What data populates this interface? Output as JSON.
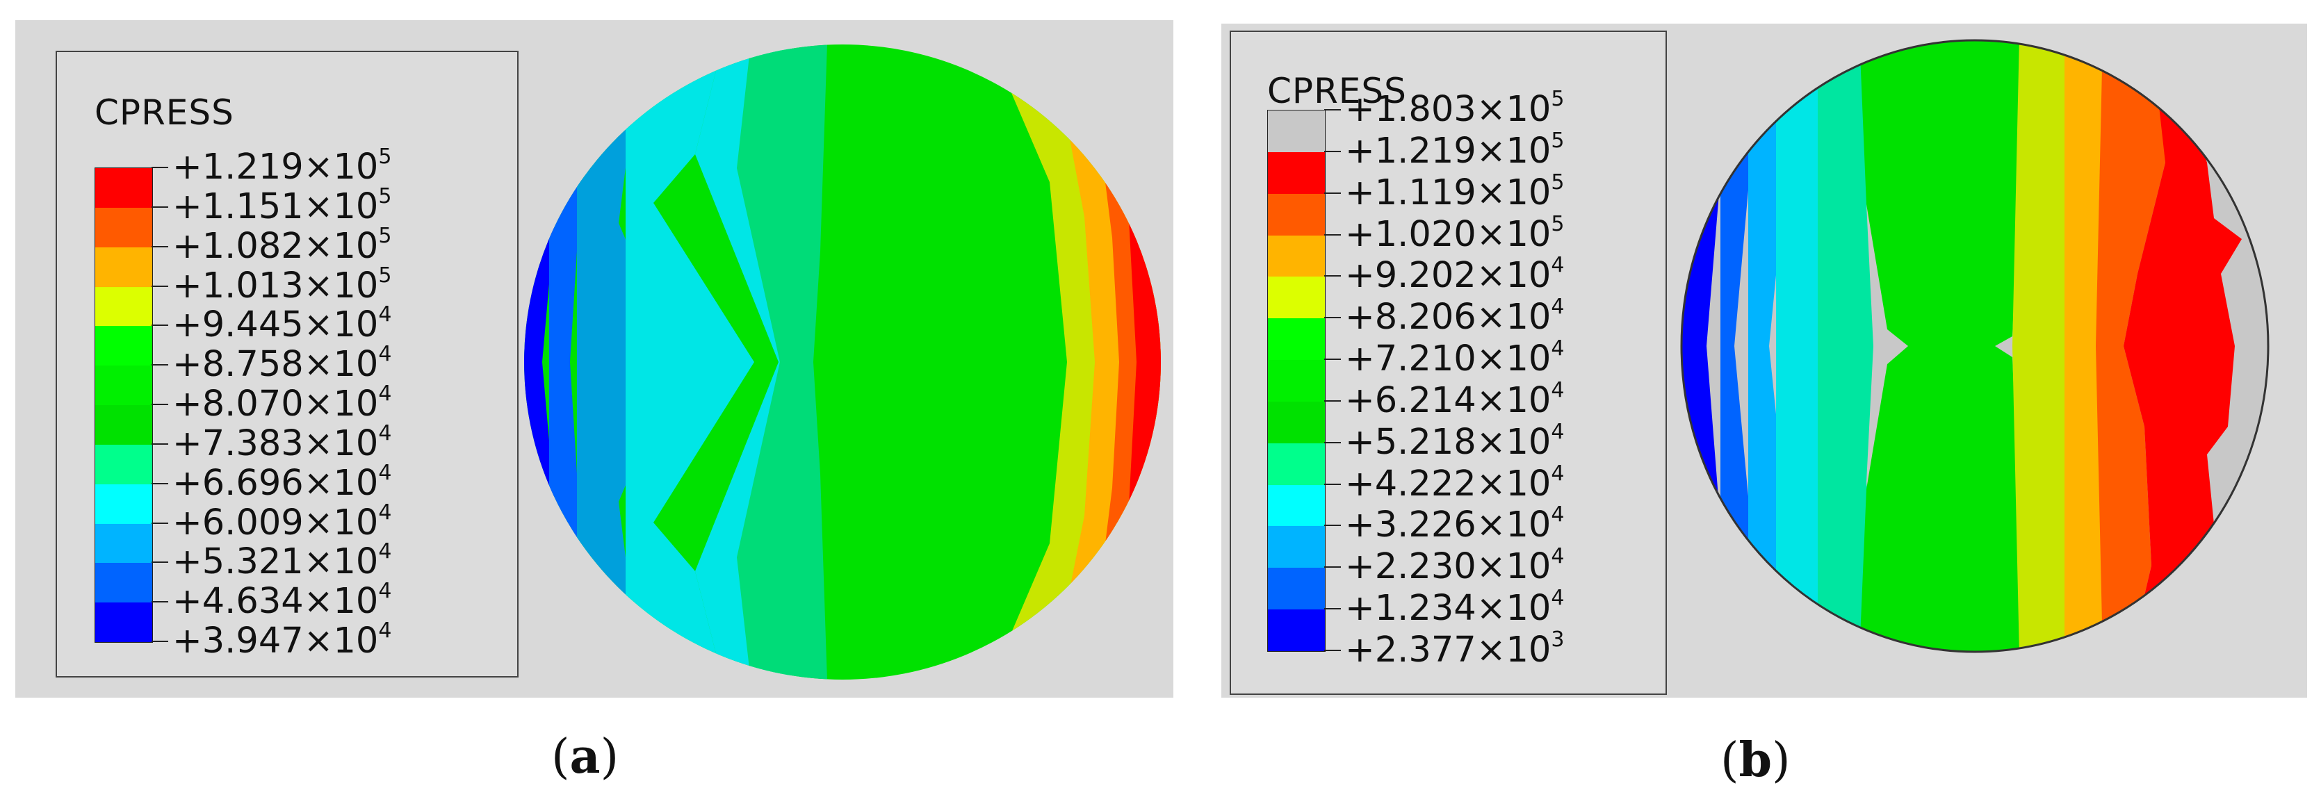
{
  "panel_a": {
    "legend_title": "CPRESS",
    "colors": [
      "#ff0000",
      "#ff5a00",
      "#ffb400",
      "#dcff00",
      "#00ff00",
      "#00f000",
      "#00e100",
      "#00ff8c",
      "#00ffff",
      "#00b4ff",
      "#0064ff",
      "#0000ff"
    ],
    "labels": [
      {
        "mant": "+1.219×10",
        "exp": "5"
      },
      {
        "mant": "+1.151×10",
        "exp": "5"
      },
      {
        "mant": "+1.082×10",
        "exp": "5"
      },
      {
        "mant": "+1.013×10",
        "exp": "5"
      },
      {
        "mant": "+9.445×10",
        "exp": "4"
      },
      {
        "mant": "+8.758×10",
        "exp": "4"
      },
      {
        "mant": "+8.070×10",
        "exp": "4"
      },
      {
        "mant": "+7.383×10",
        "exp": "4"
      },
      {
        "mant": "+6.696×10",
        "exp": "4"
      },
      {
        "mant": "+6.009×10",
        "exp": "4"
      },
      {
        "mant": "+5.321×10",
        "exp": "4"
      },
      {
        "mant": "+4.634×10",
        "exp": "4"
      },
      {
        "mant": "+3.947×10",
        "exp": "4"
      }
    ],
    "caption_letter": "a",
    "caption_open": "(",
    "caption_close": ")"
  },
  "panel_b": {
    "legend_title": "CPRESS",
    "colors": [
      "#c8c8c8",
      "#ff0000",
      "#ff5a00",
      "#ffb400",
      "#dcff00",
      "#00ff00",
      "#00f000",
      "#00e100",
      "#00ff8c",
      "#00ffff",
      "#00b4ff",
      "#0064ff",
      "#0000ff"
    ],
    "labels": [
      {
        "mant": "+1.803×10",
        "exp": "5"
      },
      {
        "mant": "+1.219×10",
        "exp": "5"
      },
      {
        "mant": "+1.119×10",
        "exp": "5"
      },
      {
        "mant": "+1.020×10",
        "exp": "5"
      },
      {
        "mant": "+9.202×10",
        "exp": "4"
      },
      {
        "mant": "+8.206×10",
        "exp": "4"
      },
      {
        "mant": "+7.210×10",
        "exp": "4"
      },
      {
        "mant": "+6.214×10",
        "exp": "4"
      },
      {
        "mant": "+5.218×10",
        "exp": "4"
      },
      {
        "mant": "+4.222×10",
        "exp": "4"
      },
      {
        "mant": "+3.226×10",
        "exp": "4"
      },
      {
        "mant": "+2.230×10",
        "exp": "4"
      },
      {
        "mant": "+1.234×10",
        "exp": "4"
      },
      {
        "mant": "+2.377×10",
        "exp": "3"
      }
    ],
    "caption_letter": "b",
    "caption_open": "(",
    "caption_close": ")"
  }
}
